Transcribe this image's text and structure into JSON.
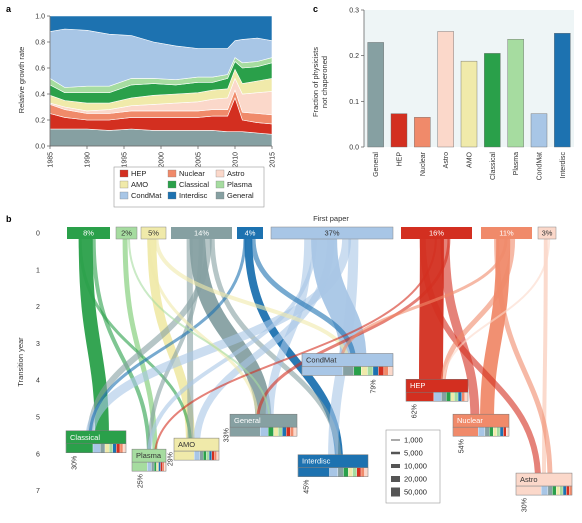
{
  "panels": {
    "a": "a",
    "b": "b",
    "c": "c"
  },
  "colors": {
    "HEP": "#d32f20",
    "Nuclear": "#f08a6a",
    "Astro": "#fbd8ca",
    "AMO": "#f0eaaa",
    "Classical": "#2aa04a",
    "Plasma": "#a6dca0",
    "CondMat": "#a8c6e6",
    "Interdisc": "#1d72b0",
    "General": "#86a0a2"
  },
  "legend_a": [
    "HEP",
    "AMO",
    "CondMat",
    "Nuclear",
    "Classical",
    "Interdisc",
    "Astro",
    "Plasma",
    "General"
  ],
  "chart_data": [
    {
      "type": "area",
      "panel": "a",
      "ylabel": "Relative growth rate",
      "xlabel": "",
      "xlim": [
        1985,
        2015
      ],
      "ylim": [
        0,
        1.0
      ],
      "xticks": [
        "1985",
        "1990",
        "1995",
        "2000",
        "2005",
        "2010",
        "2015"
      ],
      "yticks": [
        "0.0",
        "0.2",
        "0.4",
        "0.6",
        "0.8",
        "1.0"
      ],
      "x": [
        1985,
        1987,
        1990,
        1993,
        1996,
        1999,
        2002,
        2005,
        2007,
        2009,
        2010,
        2011,
        2013,
        2015
      ],
      "stack_order": [
        "General",
        "HEP",
        "Nuclear",
        "Astro",
        "AMO",
        "Classical",
        "Plasma",
        "CondMat",
        "Interdisc"
      ],
      "series": [
        {
          "name": "General",
          "values": [
            0.13,
            0.13,
            0.13,
            0.12,
            0.13,
            0.12,
            0.12,
            0.12,
            0.12,
            0.11,
            0.11,
            0.11,
            0.1,
            0.09
          ]
        },
        {
          "name": "HEP",
          "values": [
            0.12,
            0.09,
            0.07,
            0.08,
            0.09,
            0.1,
            0.1,
            0.1,
            0.11,
            0.12,
            0.26,
            0.09,
            0.08,
            0.08
          ]
        },
        {
          "name": "Nuclear",
          "values": [
            0.07,
            0.06,
            0.05,
            0.05,
            0.05,
            0.05,
            0.05,
            0.05,
            0.05,
            0.05,
            0.06,
            0.06,
            0.07,
            0.07
          ]
        },
        {
          "name": "Astro",
          "values": [
            0.01,
            0.02,
            0.02,
            0.03,
            0.04,
            0.05,
            0.06,
            0.07,
            0.08,
            0.09,
            0.09,
            0.14,
            0.16,
            0.18
          ]
        },
        {
          "name": "AMO",
          "values": [
            0.06,
            0.05,
            0.06,
            0.05,
            0.06,
            0.07,
            0.07,
            0.07,
            0.07,
            0.07,
            0.07,
            0.08,
            0.09,
            0.1
          ]
        },
        {
          "name": "Classical",
          "values": [
            0.08,
            0.06,
            0.08,
            0.08,
            0.1,
            0.09,
            0.07,
            0.08,
            0.06,
            0.08,
            0.06,
            0.12,
            0.11,
            0.12
          ]
        },
        {
          "name": "Plasma",
          "values": [
            0.05,
            0.04,
            0.05,
            0.05,
            0.05,
            0.04,
            0.04,
            0.04,
            0.04,
            0.03,
            0.03,
            0.04,
            0.04,
            0.04
          ]
        },
        {
          "name": "CondMat",
          "values": [
            0.36,
            0.45,
            0.43,
            0.4,
            0.33,
            0.28,
            0.26,
            0.22,
            0.22,
            0.2,
            0.13,
            0.18,
            0.18,
            0.13
          ]
        },
        {
          "name": "Interdisc",
          "values": [
            0.12,
            0.1,
            0.11,
            0.14,
            0.15,
            0.2,
            0.23,
            0.25,
            0.25,
            0.25,
            0.19,
            0.18,
            0.17,
            0.19
          ]
        }
      ]
    },
    {
      "type": "bar",
      "panel": "c",
      "ylabel": "Fraction of physicists\nnot chaperoned",
      "ylim": [
        0,
        0.3
      ],
      "yticks": [
        "0.0",
        "0.1",
        "0.2",
        "0.3"
      ],
      "categories": [
        "General",
        "HEP",
        "Nuclear",
        "Astro",
        "AMO",
        "Classical",
        "Plasma",
        "CondMat",
        "Interdisc"
      ],
      "values": [
        0.229,
        0.073,
        0.065,
        0.253,
        0.188,
        0.205,
        0.236,
        0.073,
        0.249
      ]
    },
    {
      "type": "diagram",
      "panel": "b",
      "title": "First paper",
      "ylabel": "Transition year",
      "yticks": [
        "0",
        "1",
        "2",
        "3",
        "4",
        "5",
        "6",
        "7"
      ],
      "ylim": [
        0,
        7
      ],
      "sources": [
        {
          "field": "Classical",
          "share": "8%"
        },
        {
          "field": "Plasma",
          "share": "2%"
        },
        {
          "field": "AMO",
          "share": "5%"
        },
        {
          "field": "General",
          "share": "14%"
        },
        {
          "field": "Interdisc",
          "share": "4%"
        },
        {
          "field": "CondMat",
          "share": "37%"
        },
        {
          "field": "HEP",
          "share": "16%"
        },
        {
          "field": "Nuclear",
          "share": "11%"
        },
        {
          "field": "Astro",
          "share": "3%"
        }
      ],
      "targets": [
        {
          "field": "Classical",
          "year": 5.7,
          "retained": "30%"
        },
        {
          "field": "Plasma",
          "year": 6.2,
          "retained": "25%"
        },
        {
          "field": "AMO",
          "year": 5.9,
          "retained": "29%"
        },
        {
          "field": "General",
          "year": 5.25,
          "retained": "33%"
        },
        {
          "field": "Interdisc",
          "year": 6.35,
          "retained": "45%"
        },
        {
          "field": "CondMat",
          "year": 3.6,
          "retained": "79%"
        },
        {
          "field": "HEP",
          "year": 4.3,
          "retained": "62%"
        },
        {
          "field": "Nuclear",
          "year": 5.25,
          "retained": "54%"
        },
        {
          "field": "Astro",
          "year": 6.85,
          "retained": "30%"
        }
      ],
      "size_legend": [
        "1,000",
        "5,000",
        "10,000",
        "20,000",
        "50,000"
      ]
    }
  ]
}
